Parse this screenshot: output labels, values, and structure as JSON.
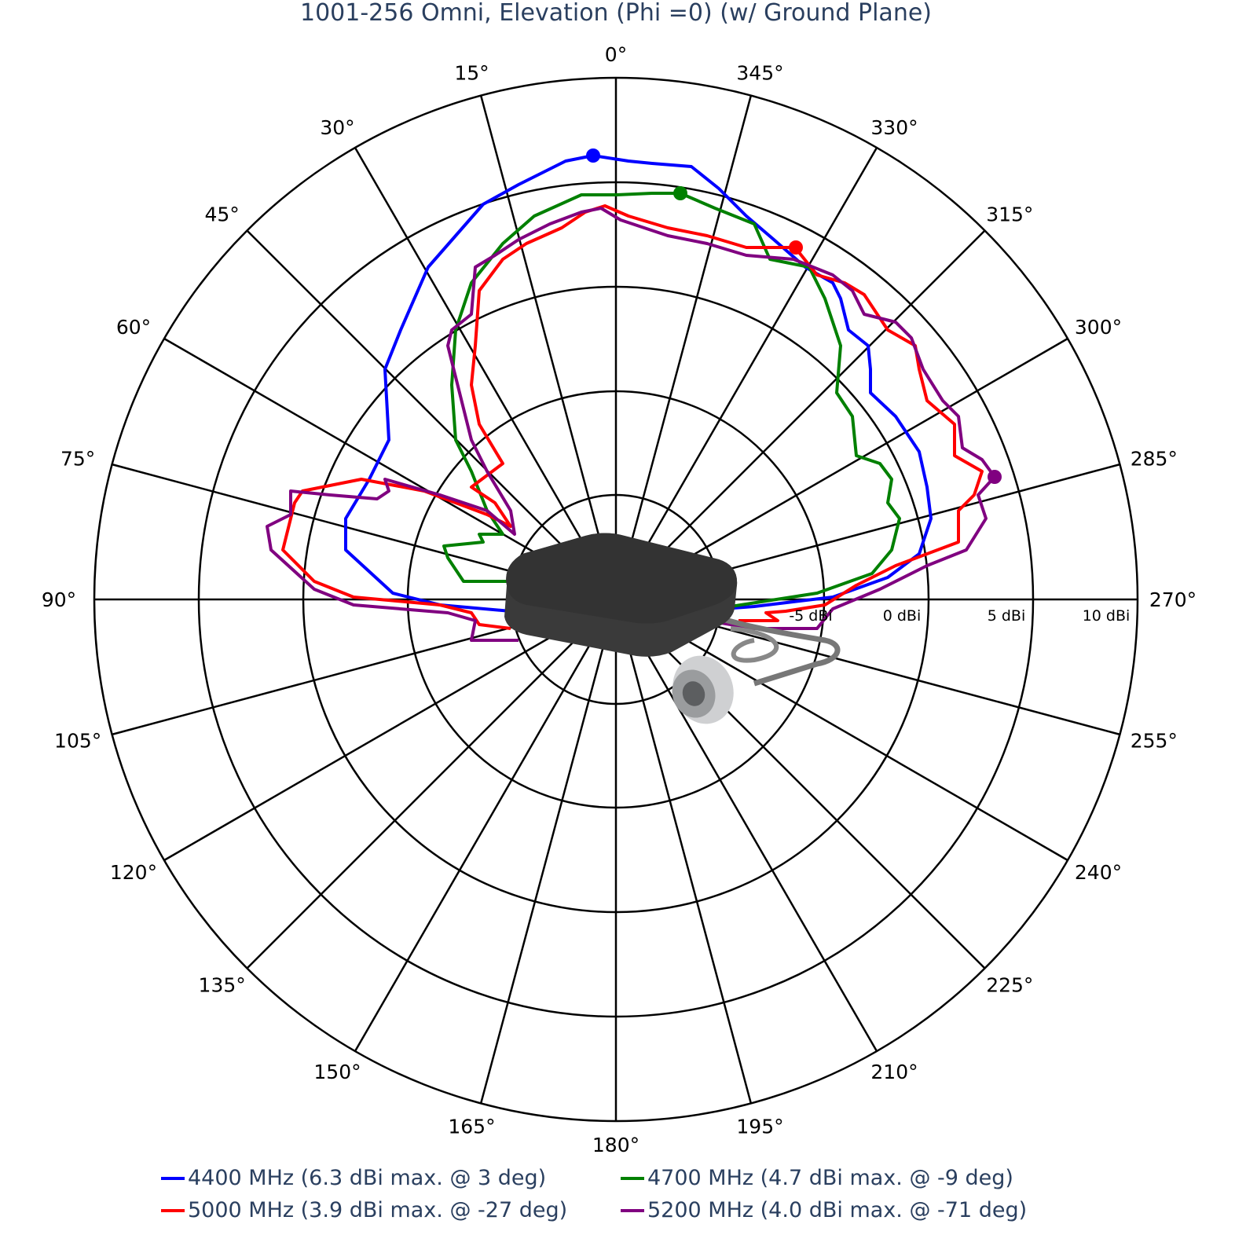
{
  "title": "1001-256 Omni, Elevation (Phi =0) (w/ Ground Plane)",
  "angular_ticks": [
    "0°",
    "15°",
    "30°",
    "45°",
    "60°",
    "75°",
    "90°",
    "105°",
    "120°",
    "135°",
    "150°",
    "165°",
    "180°",
    "195°",
    "210°",
    "225°",
    "240°",
    "255°",
    "270°",
    "285°",
    "300°",
    "315°",
    "330°",
    "345°"
  ],
  "radial_ticks": [
    "-5 dBi",
    "0 dBi",
    "5 dBi",
    "10 dBi"
  ],
  "legend": [
    {
      "label": "4400 MHz (6.3 dBi max. @ 3 deg)",
      "color": "#0000ff"
    },
    {
      "label": "4700 MHz (4.7 dBi max. @ -9 deg)",
      "color": "#008000"
    },
    {
      "label": "5000 MHz (3.9 dBi max. @ -27 deg)",
      "color": "#ff0000"
    },
    {
      "label": "5200 MHz (4.0 dBi max. @ -71 deg)",
      "color": "#800080"
    }
  ],
  "chart_data": {
    "type": "polar-line",
    "title": "1001-256 Omni, Elevation (Phi =0) (w/ Ground Plane)",
    "angular_axis": {
      "direction": "counterclockwise",
      "zero": "top",
      "step_deg": 15,
      "unit": "deg"
    },
    "radial_axis": {
      "range": [
        -15,
        10
      ],
      "tick_values": [
        -5,
        0,
        5,
        10
      ],
      "unit": "dBi"
    },
    "theta_deg": [
      0,
      15,
      30,
      45,
      60,
      75,
      90,
      270,
      285,
      300,
      315,
      330,
      345
    ],
    "series": [
      {
        "name": "4400 MHz",
        "max_dBi": 6.3,
        "max_at_deg": 3,
        "color": "#0000ff",
        "gain_dBi": [
          6.2,
          5.0,
          3.2,
          1.0,
          -0.5,
          -2.5,
          -6.0,
          -6.5,
          -0.3,
          -0.2,
          1.5,
          4.0,
          6.0
        ]
      },
      {
        "name": "4700 MHz",
        "max_dBi": 4.7,
        "max_at_deg": -9,
        "color": "#008000",
        "gain_dBi": [
          4.5,
          2.5,
          0.0,
          -1.5,
          -3.0,
          -7.0,
          -8.0,
          -7.0,
          -1.5,
          -1.0,
          0.5,
          2.5,
          4.5
        ]
      },
      {
        "name": "5000 MHz",
        "max_dBi": 3.9,
        "max_at_deg": -27,
        "color": "#ff0000",
        "gain_dBi": [
          3.5,
          1.5,
          0.0,
          -1.5,
          -2.0,
          1.5,
          0.5,
          -9.0,
          3.5,
          3.0,
          3.0,
          3.0,
          2.5
        ]
      },
      {
        "name": "5200 MHz",
        "max_dBi": 4.0,
        "max_at_deg": -71,
        "color": "#800080",
        "gain_dBi": [
          3.8,
          1.8,
          0.5,
          -0.5,
          -2.0,
          2.0,
          1.0,
          -8.0,
          4.0,
          3.0,
          2.5,
          1.5,
          1.5
        ]
      }
    ]
  }
}
